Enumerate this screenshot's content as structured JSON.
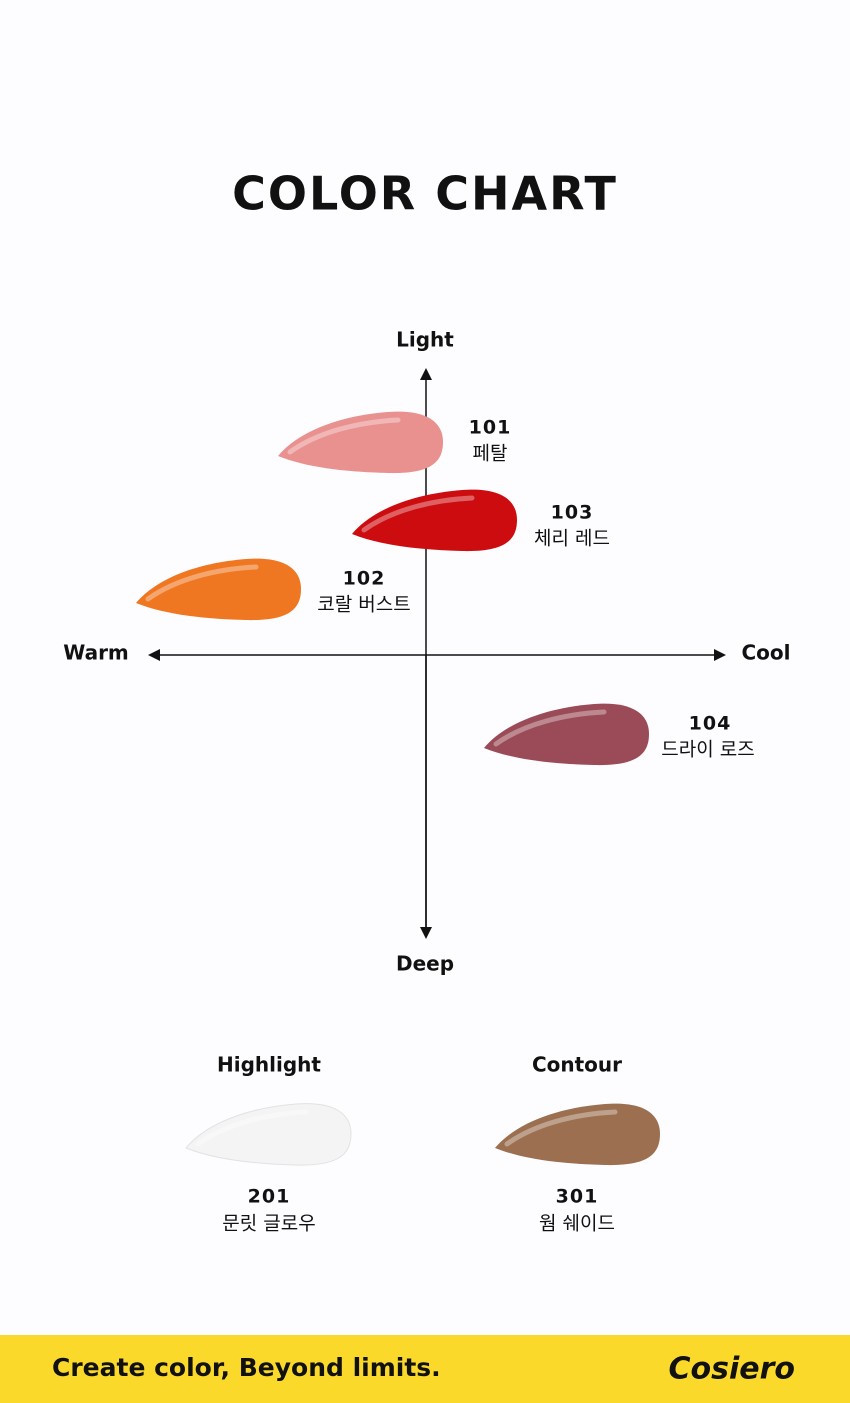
{
  "header": {
    "title": "COLOR CHART"
  },
  "axes": {
    "top": "Light",
    "bottom": "Deep",
    "left": "Warm",
    "right": "Cool"
  },
  "swatches": [
    {
      "code": "101",
      "name": "페탈"
    },
    {
      "code": "103",
      "name": "체리 레드"
    },
    {
      "code": "102",
      "name": "코랄 버스트"
    },
    {
      "code": "104",
      "name": "드라이 로즈"
    }
  ],
  "extras": [
    {
      "heading": "Highlight",
      "code": "201",
      "name": "문릿 글로우"
    },
    {
      "heading": "Contour",
      "code": "301",
      "name": "웜 쉐이드"
    }
  ],
  "footer": {
    "tagline": "Create color,  Beyond limits.",
    "brand": "Cosiero"
  }
}
